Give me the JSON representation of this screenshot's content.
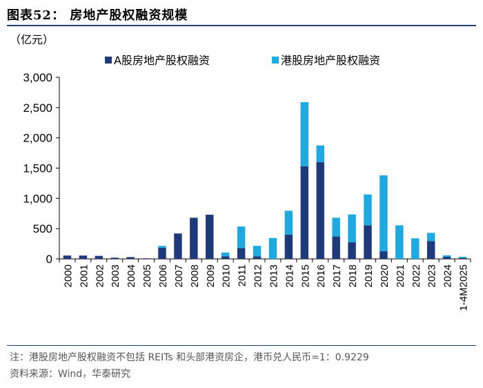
{
  "header": {
    "title": "图表52：  房地产股权融资规模"
  },
  "unit_label": "（亿元）",
  "chart_data": {
    "type": "bar",
    "stacked": true,
    "title": "房地产股权融资规模",
    "ylabel": "亿元",
    "ylim": [
      0,
      3000
    ],
    "yticks": [
      0,
      500,
      1000,
      1500,
      2000,
      2500,
      3000
    ],
    "ytick_labels": [
      "0",
      "500",
      "1,000",
      "1,500",
      "2,000",
      "2,500",
      "3,000"
    ],
    "categories": [
      "2000",
      "2001",
      "2002",
      "2003",
      "2004",
      "2005",
      "2006",
      "2007",
      "2008",
      "2009",
      "2010",
      "2011",
      "2012",
      "2013",
      "2014",
      "2015",
      "2016",
      "2017",
      "2018",
      "2019",
      "2020",
      "2021",
      "2022",
      "2023",
      "2024",
      "1-4M2025"
    ],
    "legend_position": "top",
    "series": [
      {
        "name": "A股房地产股权融资",
        "color": "#1f3a7a",
        "values": [
          55,
          55,
          50,
          20,
          30,
          10,
          185,
          420,
          680,
          730,
          40,
          180,
          40,
          0,
          400,
          1530,
          1600,
          370,
          275,
          555,
          125,
          0,
          0,
          295,
          35,
          15
        ]
      },
      {
        "name": "港股房地产股权融资",
        "color": "#1fa9e1",
        "values": [
          0,
          0,
          0,
          0,
          0,
          0,
          30,
          0,
          0,
          0,
          65,
          355,
          175,
          345,
          395,
          1060,
          275,
          310,
          460,
          510,
          1255,
          555,
          340,
          135,
          25,
          20
        ]
      }
    ]
  },
  "footer": {
    "note": "注：港股房地产股权融资不包括 REITs 和头部港资房企，港币兑人民币=1：0.9229",
    "source": "资料来源：Wind，华泰研究"
  }
}
